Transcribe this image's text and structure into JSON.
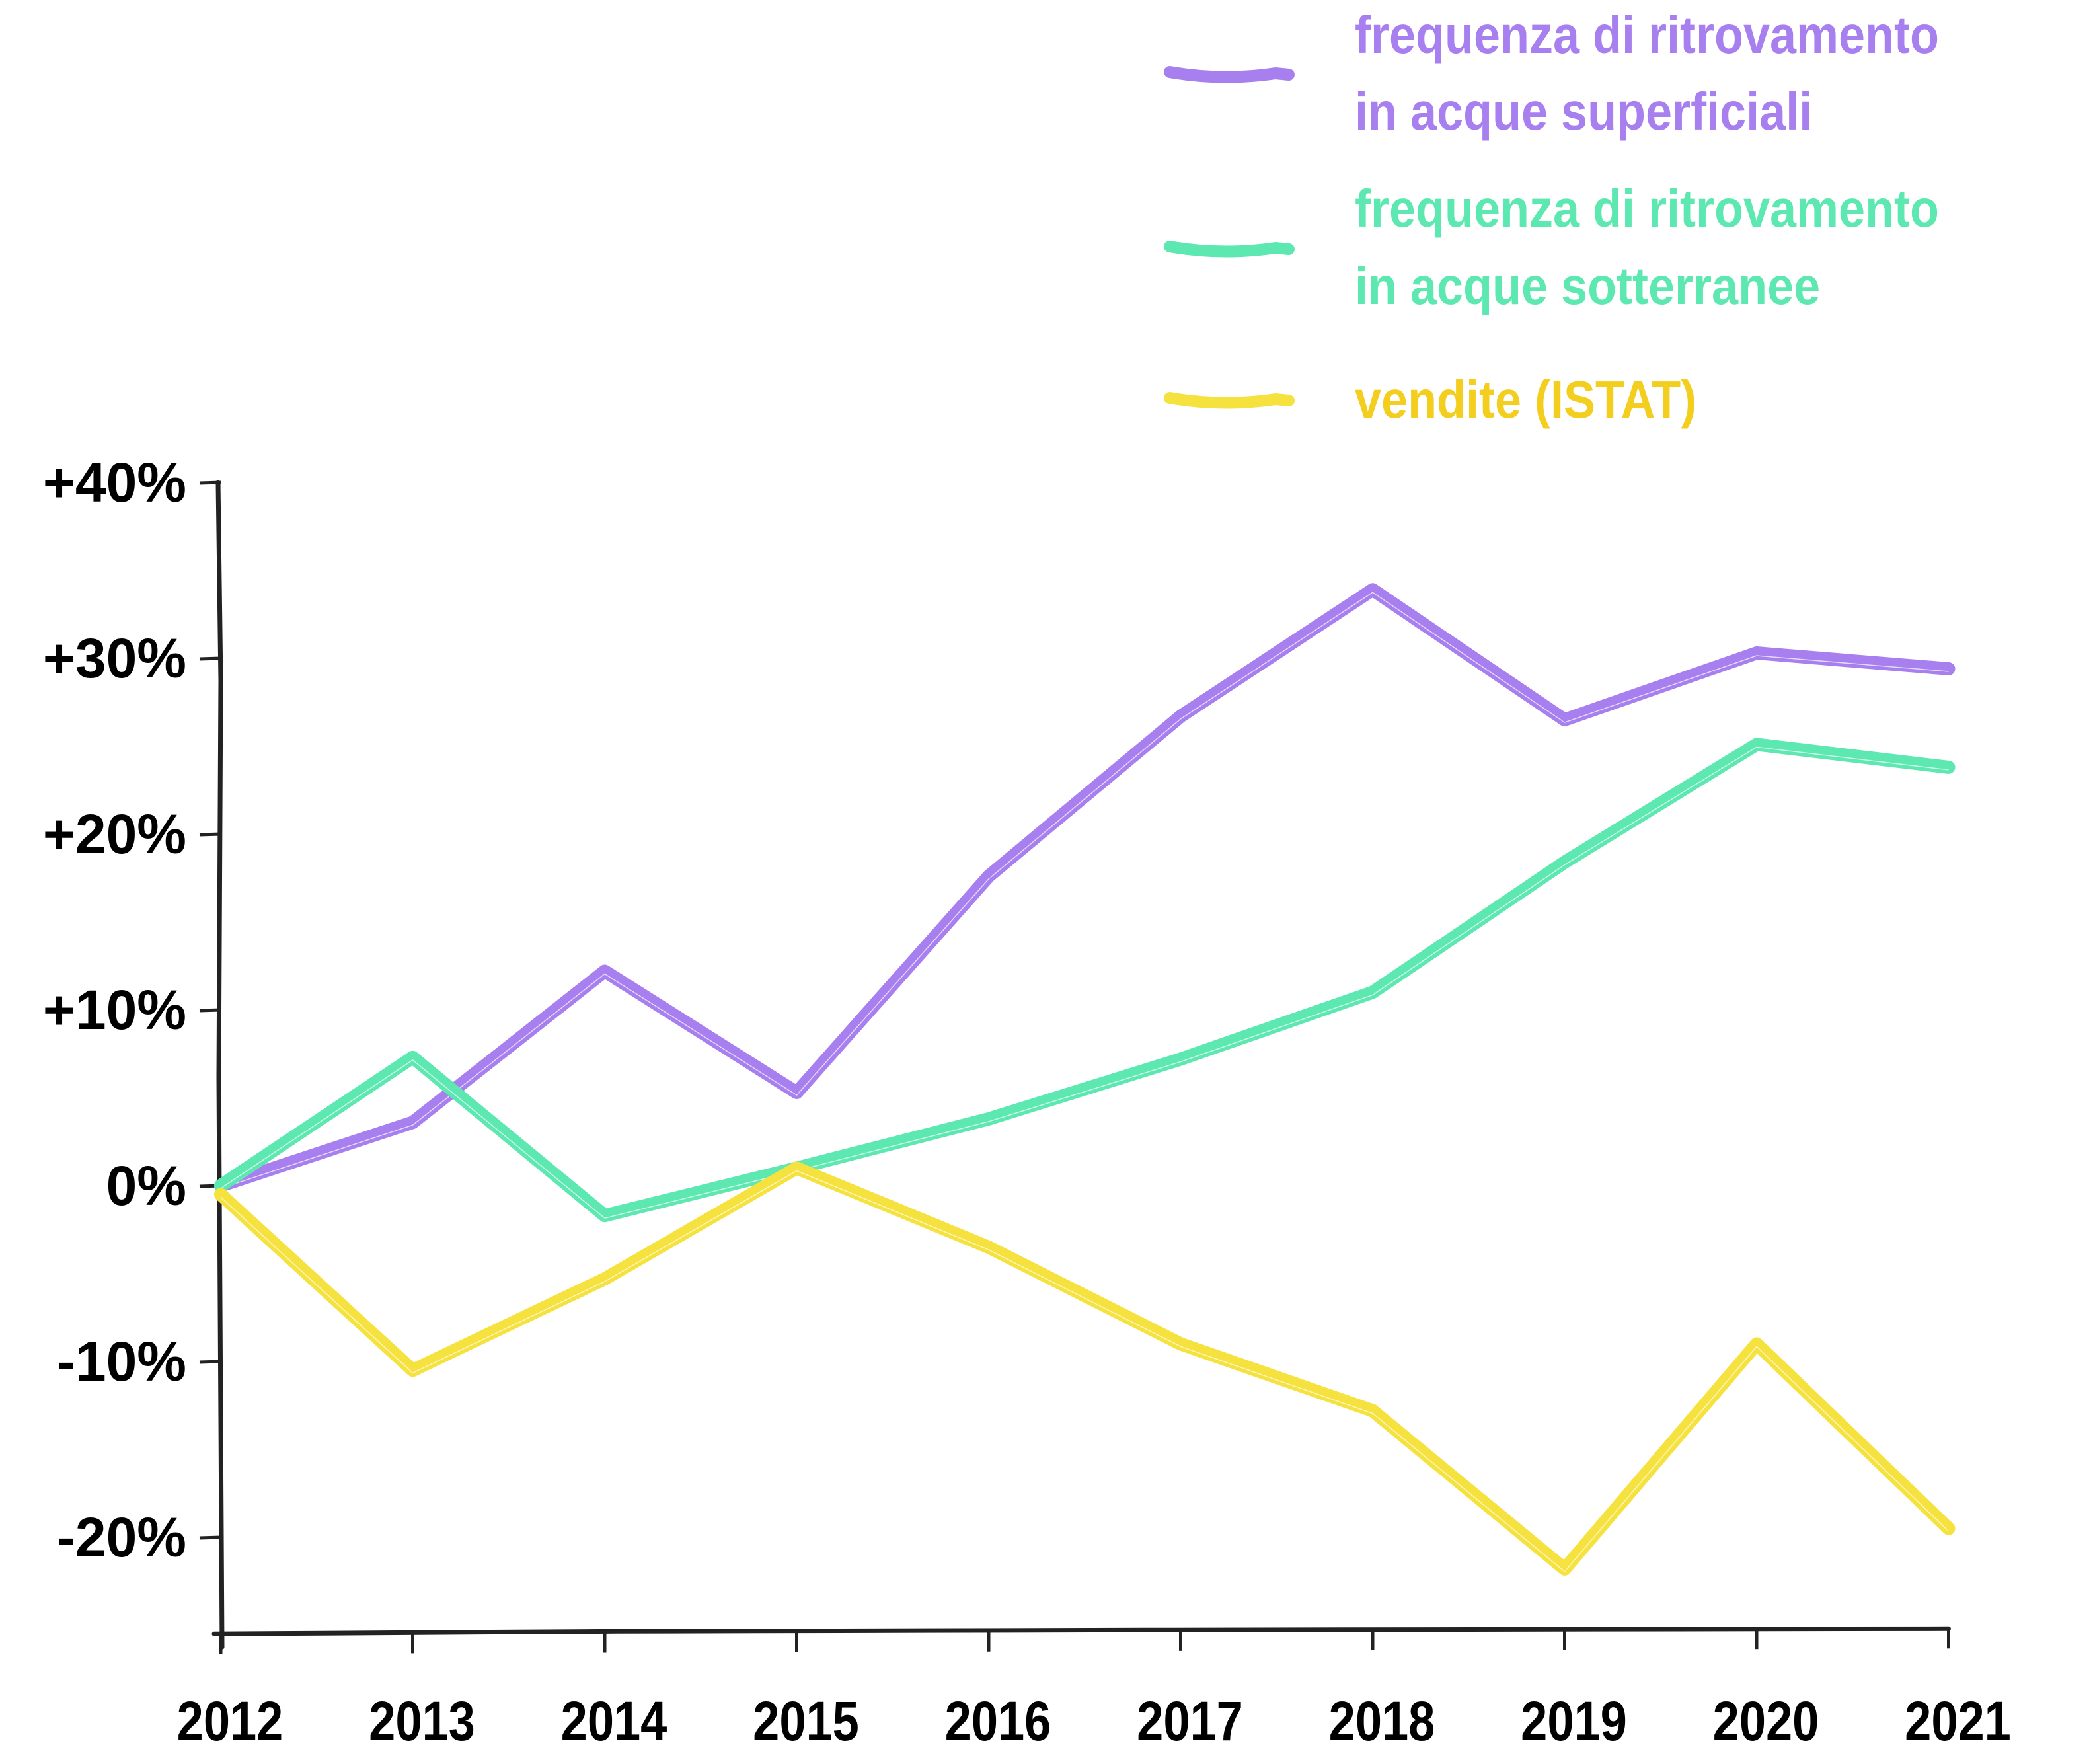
{
  "chart_data": {
    "type": "line",
    "title": "",
    "xlabel": "",
    "ylabel": "",
    "x": [
      "2012",
      "2013",
      "2014",
      "2015",
      "2016",
      "2017",
      "2018",
      "2019",
      "2020",
      "2021"
    ],
    "ylim": [
      -25.5,
      40
    ],
    "yticks": [
      40,
      30,
      20,
      10,
      0,
      -10,
      -20
    ],
    "ytick_labels": [
      "+40%",
      "+30%",
      "+20%",
      "+10%",
      "0%",
      "-10%",
      "-20%"
    ],
    "grid": false,
    "legend_position": "top-right",
    "series": [
      {
        "name": "frequenza di ritrovamento in acque superficiali",
        "legend_lines": [
          "frequenza di ritrovamento",
          "in acque superficiali"
        ],
        "color": "#A77FEF",
        "values": [
          0,
          3.6,
          12.2,
          5.3,
          17.6,
          26.7,
          33.9,
          26.5,
          30.3,
          29.4
        ]
      },
      {
        "name": "frequenza di ritrovamento in acque sotterranee",
        "legend_lines": [
          "frequenza di ritrovamento",
          "in acque sotterranee"
        ],
        "color": "#5CE8B0",
        "values": [
          0,
          7.3,
          -1.7,
          1.0,
          3.8,
          7.2,
          11.0,
          18.4,
          25.1,
          23.8
        ]
      },
      {
        "name": "vendite (ISTAT)",
        "legend_lines": [
          "vendite (ISTAT)"
        ],
        "color": "#F5E23F",
        "text_color": "#F3CE1E",
        "values": [
          -0.5,
          -10.5,
          -5.3,
          1.0,
          -3.5,
          -9.0,
          -12.8,
          -21.8,
          -9.0,
          -19.5
        ]
      }
    ]
  }
}
